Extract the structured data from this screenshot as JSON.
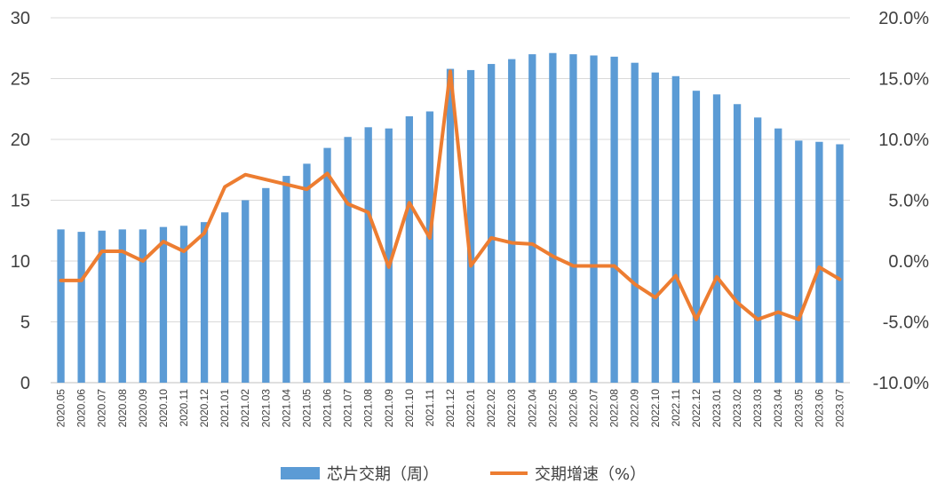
{
  "chart_data": {
    "type": "bar",
    "categories": [
      "2020.05",
      "2020.06",
      "2020.07",
      "2020.08",
      "2020.09",
      "2020.10",
      "2020.11",
      "2020.12",
      "2021.01",
      "2021.02",
      "2021.03",
      "2021.04",
      "2021.05",
      "2021.06",
      "2021.07",
      "2021.08",
      "2021.09",
      "2021.10",
      "2021.11",
      "2021.12",
      "2022.01",
      "2022.02",
      "2022.03",
      "2022.04",
      "2022.05",
      "2022.06",
      "2022.07",
      "2022.08",
      "2022.09",
      "2022.10",
      "2022.11",
      "2022.12",
      "2023.01",
      "2023.02",
      "2023.03",
      "2023.04",
      "2023.05",
      "2023.06",
      "2023.07"
    ],
    "series": [
      {
        "name": "芯片交期（周）",
        "type": "bar",
        "axis": "left",
        "color": "#5B9BD5",
        "values": [
          12.6,
          12.4,
          12.5,
          12.6,
          12.6,
          12.8,
          12.9,
          13.2,
          14.0,
          15.0,
          16.0,
          17.0,
          18.0,
          19.3,
          20.2,
          21.0,
          20.9,
          21.9,
          22.3,
          25.8,
          25.7,
          26.2,
          26.6,
          27.0,
          27.1,
          27.0,
          26.9,
          26.8,
          26.3,
          25.5,
          25.2,
          24.0,
          23.7,
          22.9,
          21.8,
          20.9,
          19.9,
          19.8,
          19.6
        ]
      },
      {
        "name": "交期增速（%）",
        "type": "line",
        "axis": "right",
        "color": "#ED7D31",
        "values": [
          -1.6,
          -1.6,
          0.8,
          0.8,
          0.0,
          1.6,
          0.8,
          2.3,
          6.1,
          7.1,
          6.7,
          6.3,
          5.9,
          7.2,
          4.7,
          4.0,
          -0.5,
          4.8,
          1.9,
          15.6,
          -0.4,
          1.9,
          1.5,
          1.4,
          0.4,
          -0.4,
          -0.4,
          -0.4,
          -1.9,
          -3.0,
          -1.2,
          -4.8,
          -1.3,
          -3.4,
          -4.8,
          -4.2,
          -4.8,
          -0.5,
          -1.5
        ]
      }
    ],
    "y_left": {
      "ylim": [
        0,
        30
      ],
      "ticks": [
        "0",
        "5",
        "10",
        "15",
        "20",
        "25",
        "30"
      ]
    },
    "y_right": {
      "ylim": [
        -10,
        20
      ],
      "ticks": [
        "-10.0%",
        "-5.0%",
        "0.0%",
        "5.0%",
        "10.0%",
        "15.0%",
        "20.0%"
      ]
    },
    "grid": true,
    "legend": "bottom"
  }
}
